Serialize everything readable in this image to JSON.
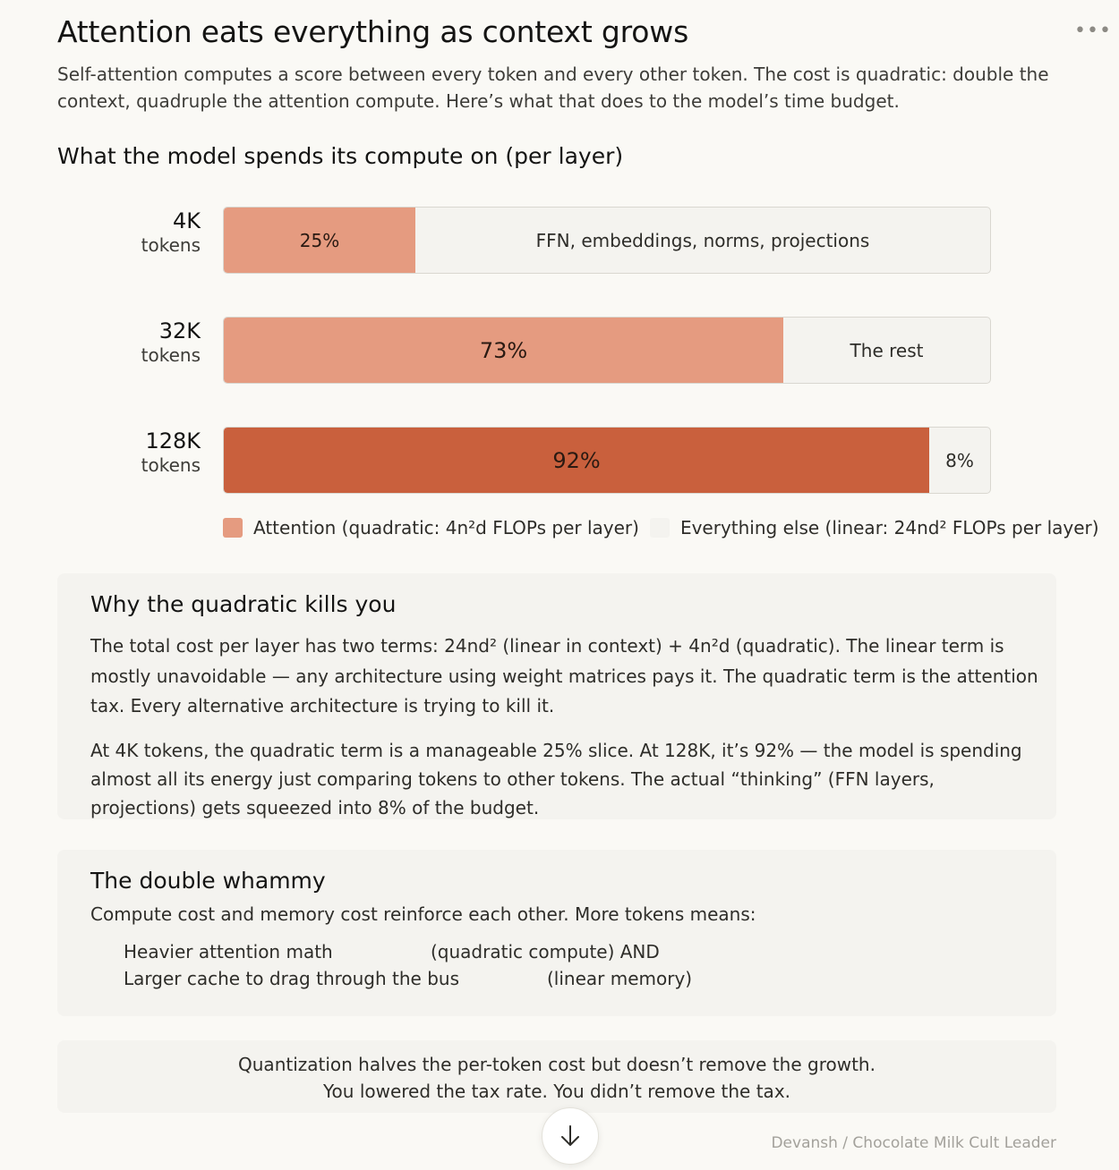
{
  "header": {
    "title": "Attention eats everything as context grows",
    "subtitle": "Self-attention computes a score between every token and every other token. The cost is quadratic: double the context, quadruple the attention compute. Here’s what that does to the model’s time budget.",
    "more_label": "•••"
  },
  "chart_data": {
    "type": "bar",
    "orientation": "horizontal-stacked-percent",
    "title": "What the model spends its compute on (per layer)",
    "categories": [
      "4K",
      "32K",
      "128K"
    ],
    "category_unit": "tokens",
    "series": [
      {
        "name": "Attention (quadratic: 4n²d FLOPs per layer)",
        "values": [
          25,
          73,
          92
        ],
        "labels": [
          "25%",
          "73%",
          "92%"
        ]
      },
      {
        "name": "Everything else (linear: 24nd² FLOPs per layer)",
        "values": [
          75,
          27,
          8
        ],
        "labels": [
          "FFN, embeddings, norms, projections",
          "The rest",
          "8%"
        ]
      }
    ],
    "xlim": [
      0,
      100
    ],
    "colors": {
      "attention": "#e59b80",
      "attention_dominant": "#c9603d",
      "rest": "#f4f3ef"
    },
    "legend_position": "bottom-left"
  },
  "card_quadratic": {
    "heading": "Why the quadratic kills you",
    "para1": "The total cost per layer has two terms: 24nd² (linear in context) + 4n²d (quadratic). The linear term is mostly unavoidable — any architecture using weight matrices pays it. The quadratic term is the attention tax. Every alternative architecture is trying to kill it.",
    "para2": "At 4K tokens, the quadratic term is a manageable 25% slice. At 128K, it’s 92% — the model is spending almost all its energy just comparing tokens to other tokens. The actual “thinking” (FFN layers, projections) gets squeezed into 8% of the budget."
  },
  "card_whammy": {
    "heading": "The double whammy",
    "intro": "Compute cost and memory cost reinforce each other. More tokens means:",
    "items": [
      {
        "left": "Heavier attention math",
        "right": "(quadratic compute) AND"
      },
      {
        "left": "Larger cache to drag through the bus",
        "right": "(linear memory)"
      }
    ]
  },
  "card_quant": {
    "line1": "Quantization halves the per-token cost but doesn’t remove the growth.",
    "line2": "You lowered the tax rate. You didn’t remove the tax."
  },
  "footer": {
    "credit": "Devansh / Chocolate Milk Cult Leader",
    "scroll_icon": "arrow-down-icon"
  }
}
